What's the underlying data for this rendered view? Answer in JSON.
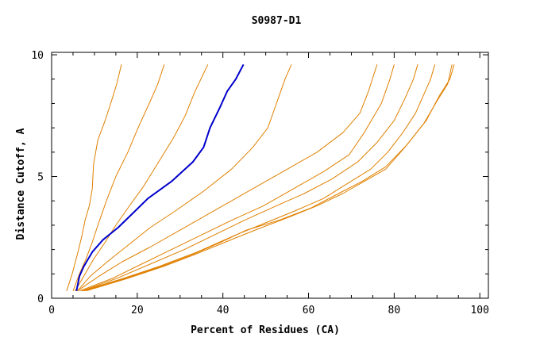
{
  "chart_data": {
    "type": "line",
    "title": "S0987-D1",
    "xlabel": "Percent of Residues (CA)",
    "ylabel": "Distance Cutoff, A",
    "xlim": [
      0,
      102
    ],
    "ylim": [
      0,
      10.1
    ],
    "x_ticks": [
      0,
      20,
      40,
      60,
      80,
      100
    ],
    "y_ticks": [
      0,
      5,
      10
    ],
    "grid": false,
    "legend": "none",
    "colors": {
      "highlight": "#0000cc",
      "others": "#e08000",
      "frame": "#000000"
    },
    "series": [
      {
        "highlight": false,
        "points": [
          [
            3.5,
            0.3
          ],
          [
            4.8,
            1.0
          ],
          [
            6.0,
            1.8
          ],
          [
            7.0,
            2.5
          ],
          [
            7.8,
            3.2
          ],
          [
            8.8,
            3.8
          ],
          [
            9.5,
            4.5
          ],
          [
            9.8,
            5.5
          ],
          [
            10.8,
            6.5
          ],
          [
            12.5,
            7.3
          ],
          [
            13.8,
            8.0
          ],
          [
            15.2,
            8.8
          ],
          [
            16.3,
            9.6
          ]
        ]
      },
      {
        "highlight": false,
        "points": [
          [
            5.0,
            0.3
          ],
          [
            6.5,
            1.0
          ],
          [
            8.0,
            1.6
          ],
          [
            9.5,
            2.3
          ],
          [
            11.0,
            3.1
          ],
          [
            12.8,
            4.0
          ],
          [
            15.0,
            5.0
          ],
          [
            17.8,
            6.0
          ],
          [
            20.2,
            7.0
          ],
          [
            22.8,
            8.0
          ],
          [
            24.8,
            8.8
          ],
          [
            26.3,
            9.6
          ]
        ]
      },
      {
        "highlight": false,
        "points": [
          [
            5.5,
            0.3
          ],
          [
            7.5,
            0.9
          ],
          [
            9.8,
            1.6
          ],
          [
            12.5,
            2.3
          ],
          [
            15.0,
            3.0
          ],
          [
            18.2,
            3.8
          ],
          [
            21.5,
            4.6
          ],
          [
            25.0,
            5.6
          ],
          [
            28.5,
            6.6
          ],
          [
            31.2,
            7.5
          ],
          [
            33.5,
            8.5
          ],
          [
            36.5,
            9.6
          ]
        ]
      },
      {
        "highlight": true,
        "points": [
          [
            5.8,
            0.3
          ],
          [
            6.5,
            0.9
          ],
          [
            7.5,
            1.3
          ],
          [
            9.5,
            1.9
          ],
          [
            12.0,
            2.4
          ],
          [
            15.5,
            2.9
          ],
          [
            19.0,
            3.5
          ],
          [
            22.5,
            4.1
          ],
          [
            28.0,
            4.8
          ],
          [
            33.0,
            5.6
          ],
          [
            35.5,
            6.2
          ],
          [
            37.0,
            7.0
          ],
          [
            39.2,
            7.8
          ],
          [
            41.0,
            8.5
          ],
          [
            43.0,
            9.0
          ],
          [
            44.8,
            9.6
          ]
        ]
      },
      {
        "highlight": false,
        "points": [
          [
            6.0,
            0.3
          ],
          [
            9.0,
            0.9
          ],
          [
            13.0,
            1.5
          ],
          [
            18.0,
            2.2
          ],
          [
            23.0,
            2.9
          ],
          [
            29.0,
            3.6
          ],
          [
            35.5,
            4.4
          ],
          [
            42.0,
            5.3
          ],
          [
            47.0,
            6.2
          ],
          [
            50.5,
            7.0
          ],
          [
            52.5,
            8.0
          ],
          [
            54.5,
            9.0
          ],
          [
            56.0,
            9.6
          ]
        ]
      },
      {
        "highlight": false,
        "points": [
          [
            6.0,
            0.3
          ],
          [
            11.0,
            0.9
          ],
          [
            16.5,
            1.5
          ],
          [
            23.0,
            2.1
          ],
          [
            30.0,
            2.8
          ],
          [
            37.0,
            3.5
          ],
          [
            44.0,
            4.2
          ],
          [
            50.0,
            4.8
          ],
          [
            56.0,
            5.4
          ],
          [
            62.0,
            6.0
          ],
          [
            68.0,
            6.8
          ],
          [
            72.0,
            7.6
          ],
          [
            74.0,
            8.5
          ],
          [
            76.0,
            9.6
          ]
        ]
      },
      {
        "highlight": false,
        "points": [
          [
            6.5,
            0.3
          ],
          [
            14.0,
            0.8
          ],
          [
            21.0,
            1.4
          ],
          [
            28.0,
            2.0
          ],
          [
            35.0,
            2.6
          ],
          [
            42.0,
            3.2
          ],
          [
            49.5,
            3.8
          ],
          [
            56.5,
            4.5
          ],
          [
            63.5,
            5.2
          ],
          [
            69.5,
            5.9
          ],
          [
            73.0,
            6.8
          ],
          [
            77.0,
            8.0
          ],
          [
            79.0,
            9.0
          ],
          [
            80.0,
            9.6
          ]
        ]
      },
      {
        "highlight": false,
        "points": [
          [
            7.0,
            0.3
          ],
          [
            15.0,
            0.8
          ],
          [
            23.0,
            1.4
          ],
          [
            31.0,
            2.0
          ],
          [
            38.0,
            2.6
          ],
          [
            45.0,
            3.2
          ],
          [
            52.5,
            3.8
          ],
          [
            59.0,
            4.3
          ],
          [
            65.5,
            4.9
          ],
          [
            71.5,
            5.6
          ],
          [
            76.0,
            6.4
          ],
          [
            80.0,
            7.3
          ],
          [
            82.5,
            8.2
          ],
          [
            84.5,
            9.0
          ],
          [
            85.5,
            9.6
          ]
        ]
      },
      {
        "highlight": false,
        "points": [
          [
            7.0,
            0.3
          ],
          [
            16.5,
            0.8
          ],
          [
            25.0,
            1.3
          ],
          [
            34.0,
            1.9
          ],
          [
            43.0,
            2.6
          ],
          [
            50.0,
            3.1
          ],
          [
            57.0,
            3.6
          ],
          [
            63.5,
            4.1
          ],
          [
            69.0,
            4.7
          ],
          [
            74.5,
            5.3
          ],
          [
            78.5,
            6.0
          ],
          [
            82.0,
            6.8
          ],
          [
            85.0,
            7.6
          ],
          [
            87.0,
            8.4
          ],
          [
            88.5,
            9.0
          ],
          [
            89.5,
            9.6
          ]
        ]
      },
      {
        "highlight": false,
        "points": [
          [
            7.5,
            0.3
          ],
          [
            17.0,
            0.8
          ],
          [
            25.5,
            1.3
          ],
          [
            33.0,
            1.8
          ],
          [
            39.5,
            2.3
          ],
          [
            45.5,
            2.8
          ],
          [
            53.0,
            3.2
          ],
          [
            60.5,
            3.7
          ],
          [
            67.0,
            4.3
          ],
          [
            72.5,
            4.8
          ],
          [
            78.0,
            5.4
          ],
          [
            83.0,
            6.3
          ],
          [
            87.0,
            7.2
          ],
          [
            90.0,
            8.1
          ],
          [
            92.5,
            8.8
          ],
          [
            93.5,
            9.6
          ]
        ]
      },
      {
        "highlight": false,
        "points": [
          [
            8.0,
            0.3
          ],
          [
            17.5,
            0.8
          ],
          [
            26.0,
            1.3
          ],
          [
            33.5,
            1.8
          ],
          [
            40.5,
            2.3
          ],
          [
            47.5,
            2.8
          ],
          [
            55.0,
            3.3
          ],
          [
            62.0,
            3.8
          ],
          [
            68.0,
            4.3
          ],
          [
            73.0,
            4.8
          ],
          [
            78.0,
            5.3
          ],
          [
            82.5,
            6.2
          ],
          [
            87.5,
            7.3
          ],
          [
            90.5,
            8.3
          ],
          [
            93.0,
            9.0
          ],
          [
            94.0,
            9.6
          ]
        ]
      }
    ]
  }
}
